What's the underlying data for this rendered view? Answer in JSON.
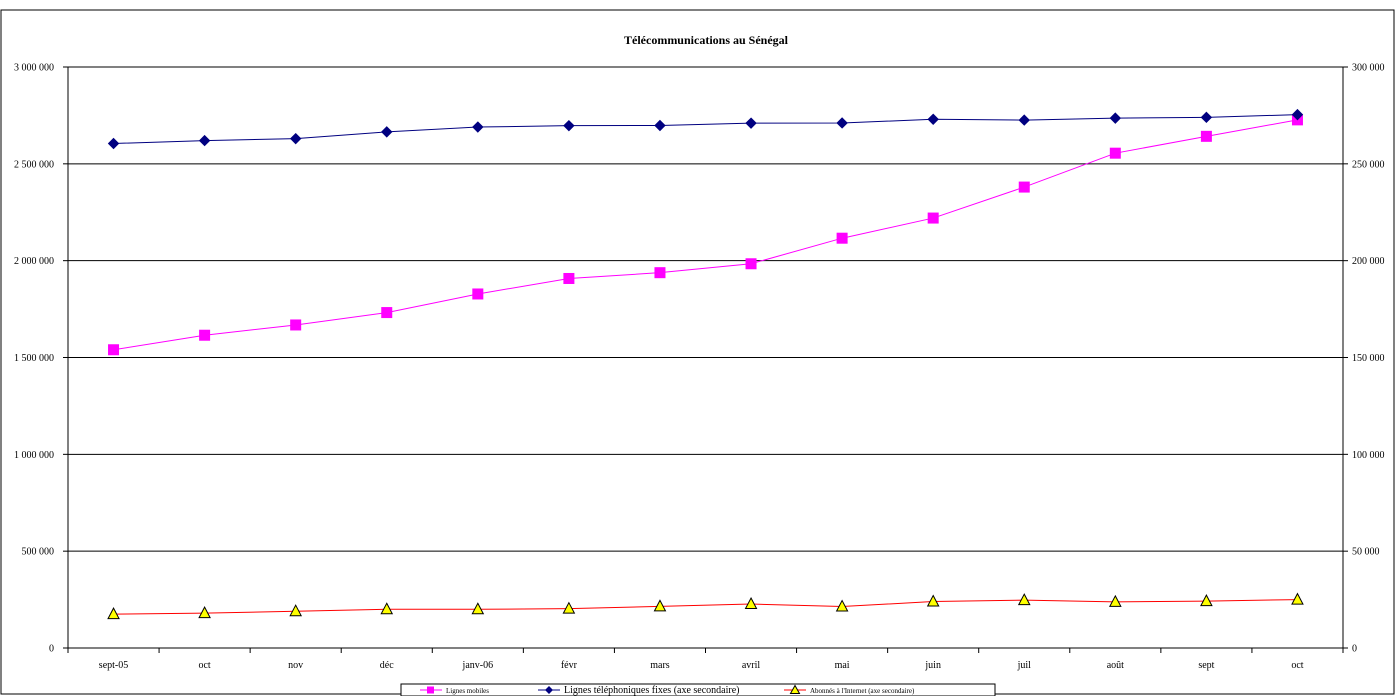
{
  "chart_data": {
    "type": "line",
    "title": "Télécommunications au Sénégal",
    "categories": [
      "sept-05",
      "oct",
      "nov",
      "déc",
      "janv-06",
      "févr",
      "mars",
      "avril",
      "mai",
      "juin",
      "juil",
      "août",
      "sept",
      "oct"
    ],
    "y_left": {
      "ylim": [
        0,
        3000000
      ],
      "ticks": [
        0,
        500000,
        1000000,
        1500000,
        2000000,
        2500000,
        3000000
      ],
      "tick_labels": [
        "0",
        "500 000",
        "1 000 000",
        "1 500 000",
        "2 000 000",
        "2 500 000",
        "3 000 000"
      ]
    },
    "y_right": {
      "ylim": [
        0,
        300000
      ],
      "ticks": [
        0,
        50000,
        100000,
        150000,
        200000,
        250000,
        300000
      ],
      "tick_labels": [
        "0",
        "50 000",
        "100 000",
        "150 000",
        "200 000",
        "250 000",
        "300 000"
      ]
    },
    "grid": true,
    "legend_position": "bottom",
    "series": [
      {
        "name": "Lignes mobiles",
        "axis": "left",
        "color": "#ff00ff",
        "marker": "square",
        "values": [
          1540000,
          1615000,
          1668000,
          1732000,
          1828000,
          1908000,
          1938000,
          1984000,
          2116000,
          2220000,
          2380000,
          2555000,
          2642000,
          2727000
        ]
      },
      {
        "name": "Lignes téléphoniques fixes (axe secondaire)",
        "axis": "right",
        "color": "#000080",
        "marker": "diamond",
        "values": [
          260500,
          262000,
          263000,
          266500,
          269000,
          269700,
          269800,
          271000,
          271100,
          273000,
          272600,
          273600,
          274000,
          275400
        ]
      },
      {
        "name": "Abonnés à l'Internet (axe secondaire)",
        "axis": "right",
        "color": "#ff0000",
        "marker": "triangle",
        "marker_fill": "#ffff00",
        "values": [
          17500,
          18000,
          19000,
          20000,
          20000,
          20300,
          21500,
          22700,
          21400,
          24000,
          24700,
          23800,
          24200,
          25000
        ]
      }
    ]
  }
}
